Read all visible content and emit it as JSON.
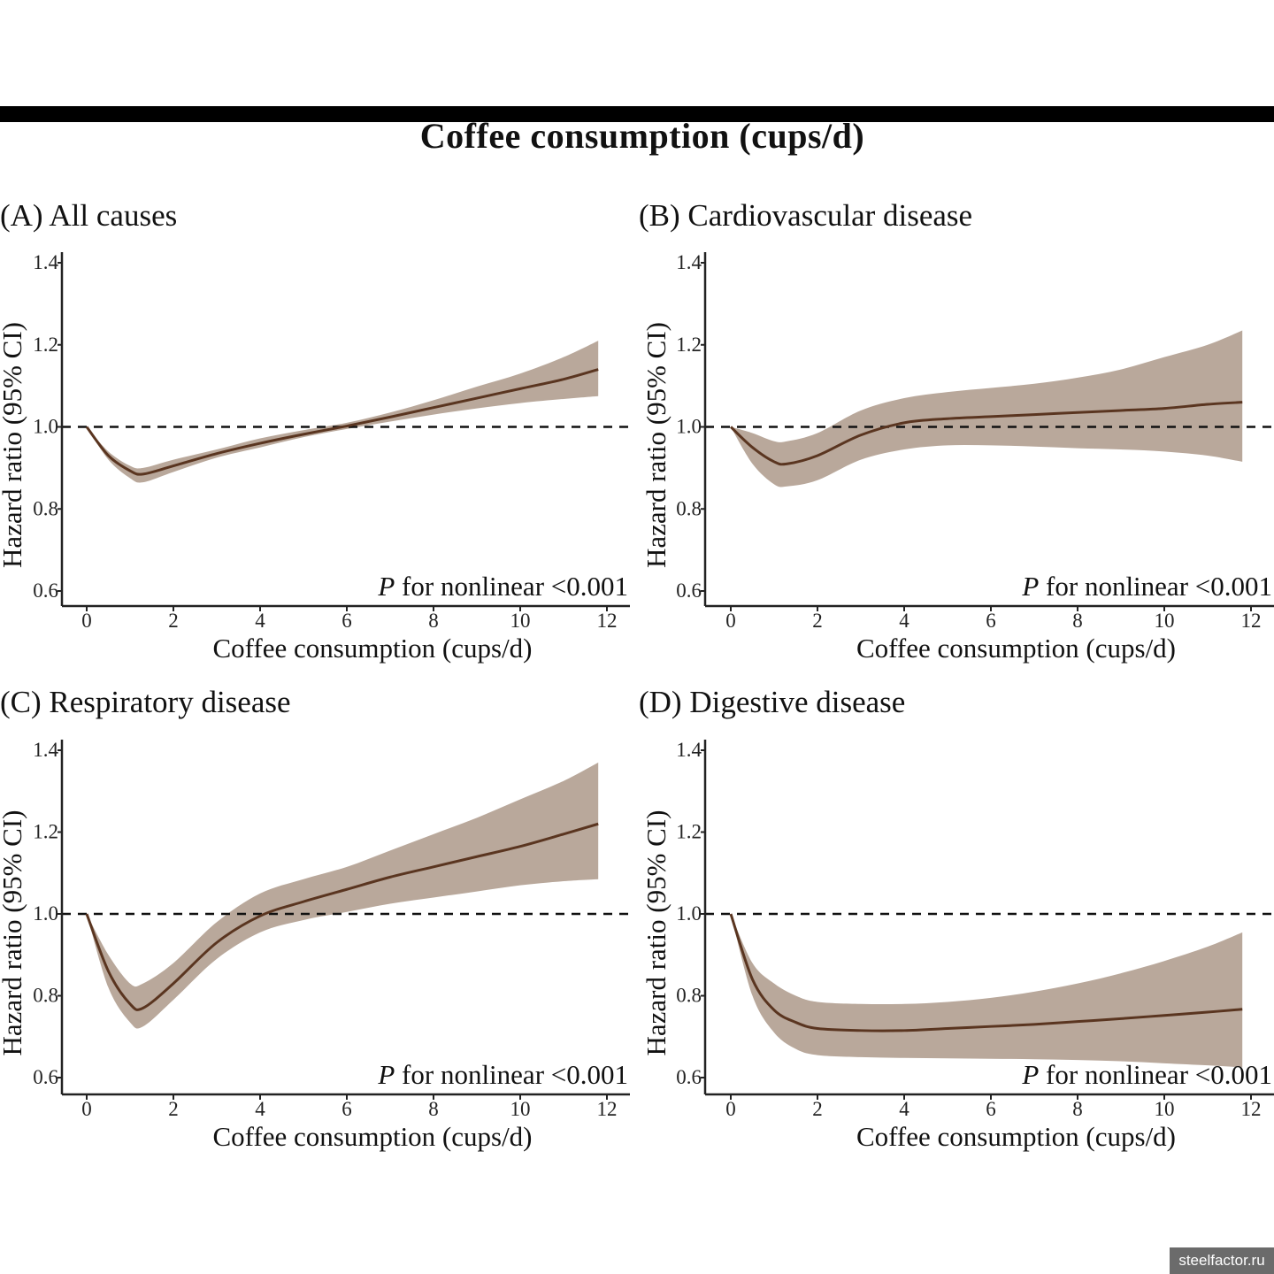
{
  "title": "Coffee consumption (cups/d)",
  "watermark": "steelfactor.ru",
  "colors": {
    "band": "#b9a89b",
    "line": "#5a3520",
    "reference": "#111111",
    "axis": "#222222"
  },
  "chart_data": [
    {
      "type": "line",
      "title": "(A) All causes",
      "xlabel": "Coffee consumption (cups/d)",
      "ylabel": "Hazard ratio (95% CI)",
      "xlim": [
        0,
        12
      ],
      "ylim": [
        0.6,
        1.4
      ],
      "xticks": [
        "0",
        "2",
        "4",
        "6",
        "8",
        "10",
        "12"
      ],
      "yticks": [
        "0.6",
        "0.8",
        "1.0",
        "1.2",
        "1.4"
      ],
      "reference_line": 1.0,
      "annotation": {
        "italic": "P",
        "text": " for nonlinear <0.001"
      },
      "x": [
        0,
        0.5,
        1,
        1.3,
        2,
        3,
        4,
        5,
        6,
        7,
        8,
        9,
        10,
        11,
        11.8
      ],
      "y": [
        1.0,
        0.93,
        0.893,
        0.885,
        0.905,
        0.935,
        0.96,
        0.982,
        1.002,
        1.024,
        1.047,
        1.07,
        1.093,
        1.116,
        1.14
      ],
      "lower": [
        1.0,
        0.92,
        0.875,
        0.865,
        0.89,
        0.925,
        0.95,
        0.975,
        0.995,
        1.013,
        1.03,
        1.045,
        1.058,
        1.068,
        1.075
      ],
      "upper": [
        1.0,
        0.94,
        0.905,
        0.9,
        0.92,
        0.945,
        0.972,
        0.992,
        1.01,
        1.035,
        1.065,
        1.098,
        1.13,
        1.17,
        1.21
      ]
    },
    {
      "type": "line",
      "title": "(B) Cardiovascular disease",
      "xlabel": "Coffee consumption (cups/d)",
      "ylabel": "Hazard ratio (95% CI)",
      "xlim": [
        0,
        12
      ],
      "ylim": [
        0.6,
        1.4
      ],
      "xticks": [
        "0",
        "2",
        "4",
        "6",
        "8",
        "10",
        "12"
      ],
      "yticks": [
        "0.6",
        "0.8",
        "1.0",
        "1.2",
        "1.4"
      ],
      "reference_line": 1.0,
      "annotation": {
        "italic": "P",
        "text": " for nonlinear <0.001"
      },
      "x": [
        0,
        0.5,
        1,
        1.3,
        2,
        3,
        4,
        5,
        6,
        7,
        8,
        9,
        10,
        11,
        11.8
      ],
      "y": [
        1.0,
        0.95,
        0.915,
        0.91,
        0.93,
        0.98,
        1.01,
        1.02,
        1.025,
        1.03,
        1.035,
        1.04,
        1.045,
        1.055,
        1.06
      ],
      "lower": [
        1.0,
        0.91,
        0.86,
        0.855,
        0.87,
        0.92,
        0.945,
        0.955,
        0.955,
        0.952,
        0.948,
        0.945,
        0.94,
        0.93,
        0.915
      ],
      "upper": [
        1.0,
        0.985,
        0.965,
        0.965,
        0.985,
        1.04,
        1.07,
        1.085,
        1.095,
        1.105,
        1.12,
        1.14,
        1.17,
        1.2,
        1.235
      ]
    },
    {
      "type": "line",
      "title": "(C) Respiratory disease",
      "xlabel": "Coffee consumption (cups/d)",
      "ylabel": "Hazard ratio (95% CI)",
      "xlim": [
        0,
        12
      ],
      "ylim": [
        0.6,
        1.4
      ],
      "xticks": [
        "0",
        "2",
        "4",
        "6",
        "8",
        "10",
        "12"
      ],
      "yticks": [
        "0.6",
        "0.8",
        "1.0",
        "1.2",
        "1.4"
      ],
      "reference_line": 1.0,
      "annotation": {
        "italic": "P",
        "text": " for nonlinear <0.001"
      },
      "x": [
        0,
        0.5,
        1,
        1.3,
        2,
        3,
        4,
        5,
        6,
        7,
        8,
        9,
        10,
        11,
        11.8
      ],
      "y": [
        1.0,
        0.86,
        0.78,
        0.77,
        0.83,
        0.93,
        0.995,
        1.03,
        1.06,
        1.09,
        1.115,
        1.14,
        1.165,
        1.195,
        1.22
      ],
      "lower": [
        1.0,
        0.82,
        0.735,
        0.725,
        0.79,
        0.89,
        0.955,
        0.985,
        1.005,
        1.025,
        1.04,
        1.055,
        1.07,
        1.08,
        1.085
      ],
      "upper": [
        1.0,
        0.9,
        0.83,
        0.83,
        0.88,
        0.98,
        1.05,
        1.085,
        1.115,
        1.155,
        1.195,
        1.235,
        1.28,
        1.325,
        1.37
      ]
    },
    {
      "type": "line",
      "title": "(D) Digestive disease",
      "xlabel": "Coffee consumption (cups/d)",
      "ylabel": "Hazard ratio (95% CI)",
      "xlim": [
        0,
        12
      ],
      "ylim": [
        0.6,
        1.4
      ],
      "xticks": [
        "0",
        "2",
        "4",
        "6",
        "8",
        "10",
        "12"
      ],
      "yticks": [
        "0.6",
        "0.8",
        "1.0",
        "1.2",
        "1.4"
      ],
      "reference_line": 1.0,
      "annotation": {
        "italic": "P",
        "text": " for nonlinear <0.001"
      },
      "x": [
        0,
        0.5,
        1,
        1.5,
        2,
        3,
        4,
        5,
        6,
        7,
        8,
        9,
        10,
        11,
        11.8
      ],
      "y": [
        1.0,
        0.84,
        0.765,
        0.735,
        0.72,
        0.715,
        0.715,
        0.72,
        0.725,
        0.73,
        0.737,
        0.744,
        0.752,
        0.76,
        0.767
      ],
      "lower": [
        1.0,
        0.8,
        0.71,
        0.67,
        0.655,
        0.65,
        0.648,
        0.647,
        0.646,
        0.645,
        0.643,
        0.64,
        0.635,
        0.63,
        0.625
      ],
      "upper": [
        1.0,
        0.88,
        0.83,
        0.8,
        0.785,
        0.78,
        0.78,
        0.785,
        0.795,
        0.81,
        0.83,
        0.855,
        0.885,
        0.92,
        0.955
      ]
    }
  ]
}
